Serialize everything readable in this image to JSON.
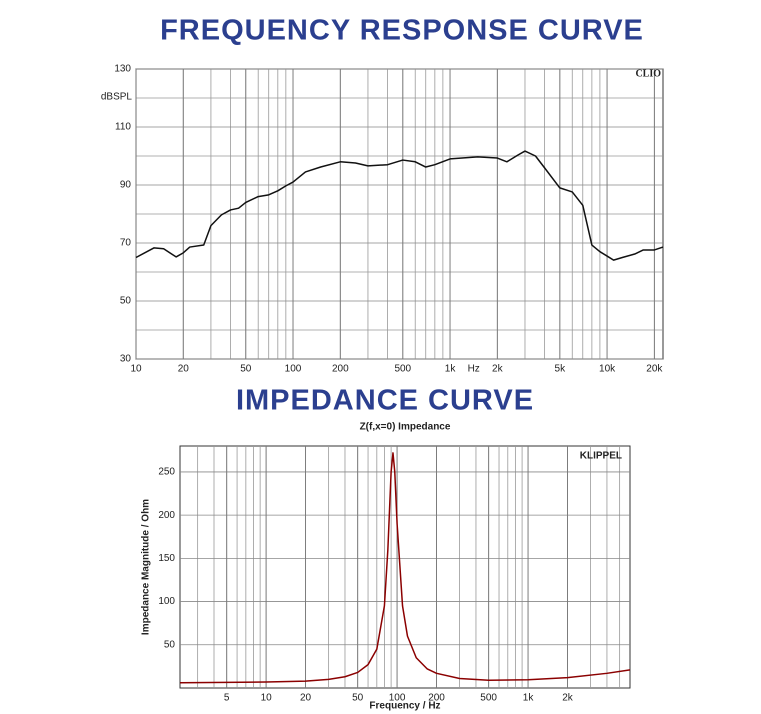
{
  "chart_data": [
    {
      "type": "line",
      "heading": "FREQUENCY RESPONSE CURVE",
      "ylabel": "dBSPL",
      "brand": "CLIO",
      "xlabel": "Hz",
      "xlog": true,
      "grid": true,
      "xlim": [
        10,
        22700
      ],
      "ylim": [
        30,
        130
      ],
      "xticks": [
        10,
        20,
        50,
        100,
        200,
        500,
        {
          "value": 1000,
          "label": "1k"
        },
        {
          "value": 2000,
          "label": "2k"
        },
        {
          "value": 5000,
          "label": "5k"
        },
        {
          "value": 10000,
          "label": "10k"
        },
        {
          "value": 20000,
          "label": "20k"
        }
      ],
      "yticks": [
        30,
        50,
        70,
        90,
        110,
        130
      ],
      "series": [
        {
          "color": "#111111",
          "x": [
            10,
            13,
            15,
            18,
            20,
            22,
            27,
            30,
            35,
            40,
            45,
            50,
            60,
            70,
            80,
            90,
            100,
            120,
            150,
            200,
            250,
            300,
            400,
            500,
            600,
            700,
            800,
            1000,
            1500,
            2000,
            2300,
            2700,
            3000,
            3500,
            4000,
            5000,
            6000,
            7000,
            8000,
            9000,
            10000,
            11000,
            12500,
            15000,
            17000,
            20000,
            22700
          ],
          "values": [
            65,
            68.3,
            68,
            65.2,
            66.6,
            68.6,
            69.3,
            76,
            79.7,
            81.4,
            82,
            84,
            86,
            86.6,
            88,
            89.7,
            91,
            94.5,
            96.2,
            98,
            97.6,
            96.6,
            97,
            98.6,
            98,
            96.2,
            97,
            99,
            99.7,
            99.3,
            98,
            100.3,
            101.7,
            100,
            95.9,
            89,
            87.6,
            83,
            69.3,
            67,
            65.5,
            64.1,
            65,
            66.2,
            67.6,
            67.6,
            68.6
          ]
        }
      ]
    },
    {
      "type": "line",
      "heading": "IMPEDANCE CURVE",
      "title": "Z(f,x=0) Impedance",
      "xlabel": "Frequency / Hz",
      "ylabel": "Impedance Magnitude / Ohm",
      "brand": "KLIPPEL",
      "xlog": true,
      "grid": true,
      "xlim": [
        2.2,
        6000
      ],
      "ylim": [
        0,
        280
      ],
      "xticks": [
        5,
        10,
        20,
        50,
        100,
        200,
        500,
        {
          "value": 1000,
          "label": "1k"
        },
        {
          "value": 2000,
          "label": "2k"
        }
      ],
      "yticks": [
        50,
        100,
        150,
        200,
        250
      ],
      "series": [
        {
          "color": "#8b0000",
          "x": [
            2.2,
            5,
            10,
            20,
            30,
            40,
            50,
            60,
            70,
            80,
            85,
            90,
            93,
            96,
            100,
            110,
            120,
            140,
            170,
            200,
            300,
            500,
            1000,
            2000,
            4000,
            6000
          ],
          "values": [
            6,
            6.5,
            7,
            8,
            10,
            13,
            18,
            27,
            45,
            95,
            160,
            250,
            272,
            250,
            190,
            95,
            60,
            35,
            22,
            17,
            11,
            9,
            9.5,
            12,
            17,
            21
          ]
        }
      ]
    }
  ]
}
